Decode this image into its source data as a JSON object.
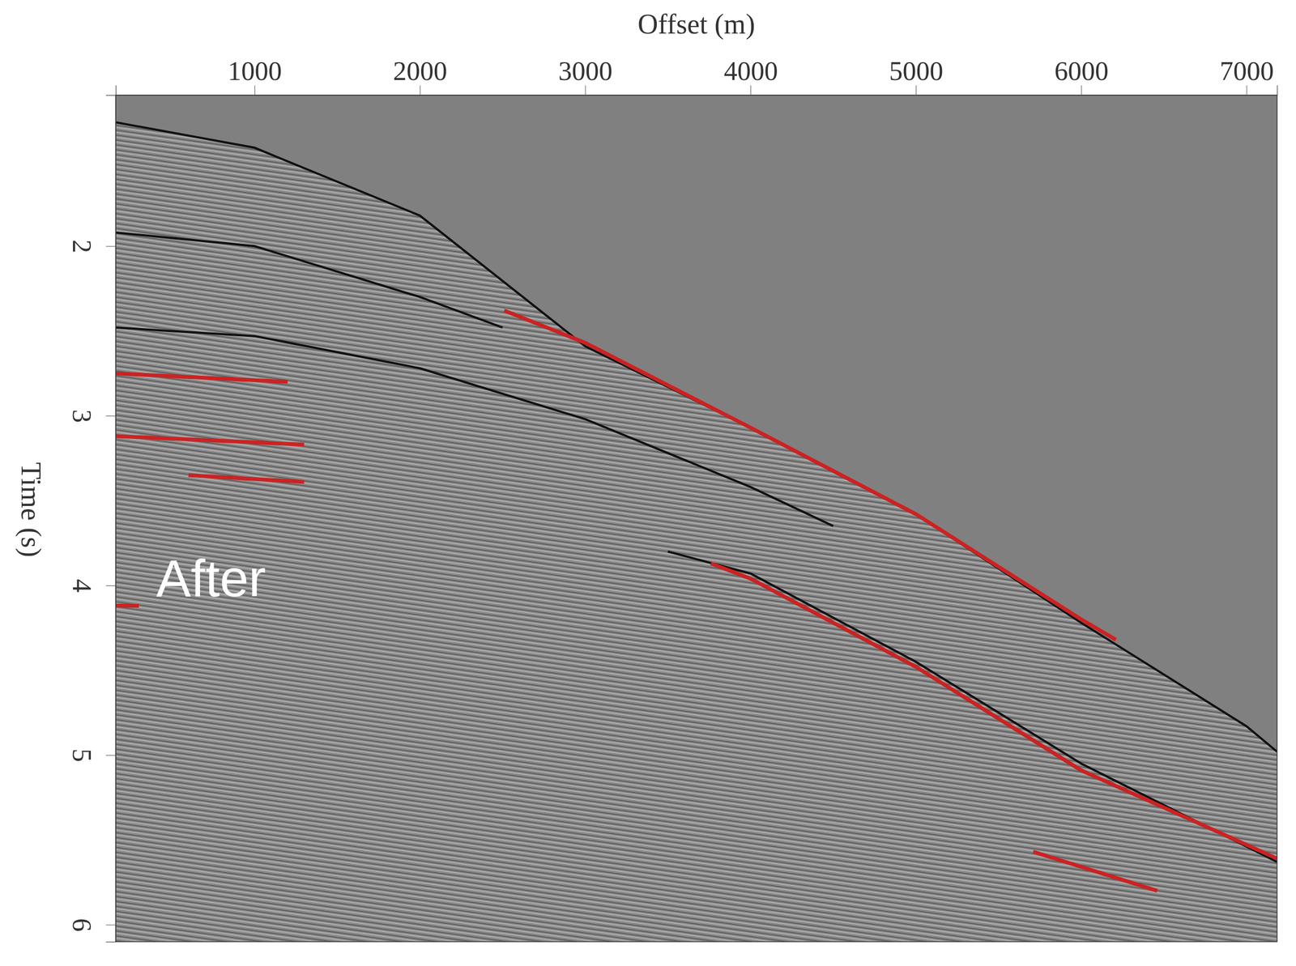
{
  "chart_data": {
    "type": "seismic",
    "x_label": "Offset (m)",
    "y_label": "Time (s)",
    "annotation": "After",
    "xlim": [
      160,
      7185
    ],
    "xticks": [
      1000,
      2000,
      3000,
      4000,
      5000,
      6000,
      7000
    ],
    "ylim": [
      1.11,
      6.1
    ],
    "yticks": [
      2,
      3,
      4,
      5,
      6
    ],
    "series": [
      {
        "color": "#111111",
        "line_style": "solid",
        "x": [
          160,
          1000,
          2000,
          3000,
          4000,
          5000,
          6000,
          7000,
          7185
        ],
        "values": [
          1.27,
          1.42,
          1.82,
          2.59,
          3.07,
          3.58,
          4.22,
          4.83,
          4.98
        ]
      },
      {
        "color": "#111111",
        "line_style": "solid",
        "x": [
          160,
          1000,
          2000,
          2500
        ],
        "values": [
          1.92,
          2.0,
          2.3,
          2.48
        ]
      },
      {
        "color": "#111111",
        "line_style": "solid",
        "x": [
          160,
          1000,
          2000,
          3000,
          4000,
          4500
        ],
        "values": [
          2.48,
          2.53,
          2.72,
          3.02,
          3.42,
          3.65
        ]
      },
      {
        "color": "#111111",
        "line_style": "solid",
        "x": [
          3500,
          4000,
          5000,
          6000,
          7185
        ],
        "values": [
          3.8,
          3.93,
          4.45,
          5.05,
          5.63
        ]
      },
      {
        "color": "#cc2222",
        "line_style": "solid",
        "x": [
          2510,
          3000,
          4000,
          5000,
          6000,
          6210
        ],
        "values": [
          2.38,
          2.57,
          3.07,
          3.58,
          4.2,
          4.32
        ]
      },
      {
        "color": "#cc2222",
        "line_style": "solid",
        "x": [
          3760,
          4000,
          5000,
          6000,
          7185
        ],
        "values": [
          3.87,
          3.96,
          4.48,
          5.09,
          5.61
        ]
      },
      {
        "color": "#cc2222",
        "line_style": "solid",
        "x": [
          5710,
          6460
        ],
        "values": [
          5.57,
          5.8
        ]
      },
      {
        "color": "#cc2222",
        "line_style": "solid",
        "x": [
          160,
          1200
        ],
        "values": [
          2.75,
          2.8
        ]
      },
      {
        "color": "#cc2222",
        "line_style": "solid",
        "x": [
          160,
          1300
        ],
        "values": [
          3.12,
          3.17
        ]
      },
      {
        "color": "#cc2222",
        "line_style": "solid",
        "x": [
          600,
          1300
        ],
        "values": [
          3.35,
          3.39
        ]
      },
      {
        "color": "#cc2222",
        "line_style": "solid",
        "x": [
          160,
          300
        ],
        "values": [
          4.12,
          4.12
        ]
      }
    ]
  }
}
